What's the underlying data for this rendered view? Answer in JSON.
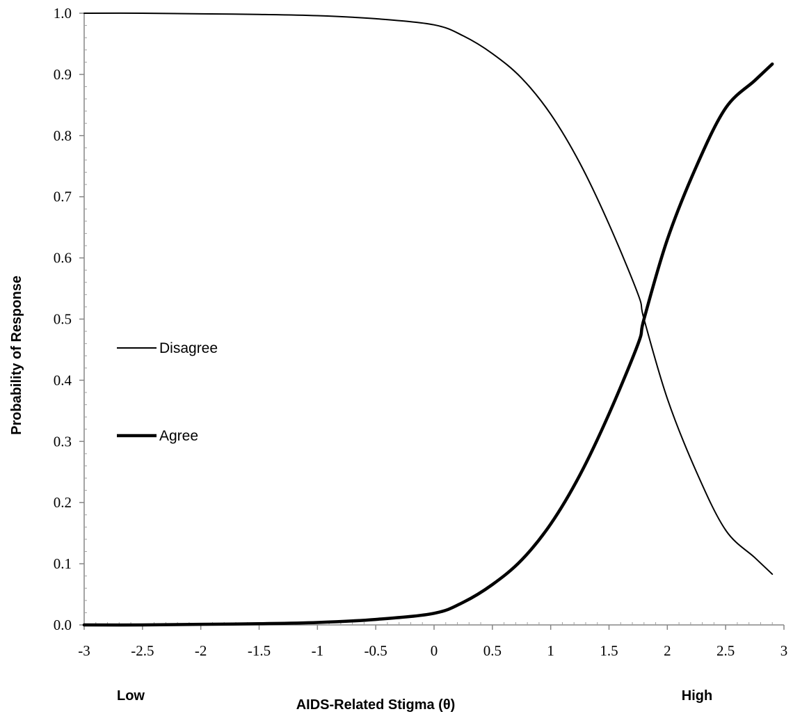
{
  "chart_data": {
    "type": "line",
    "xlabel": "AIDS-Related Stigma (θ)",
    "ylabel": "Probability of Response",
    "x_end_labels": {
      "low": "Low",
      "high": "High"
    },
    "xlim": [
      -3,
      3
    ],
    "ylim": [
      0,
      1
    ],
    "x_ticks": [
      -3,
      -2.5,
      -2,
      -1.5,
      -1,
      -0.5,
      0,
      0.5,
      1,
      1.5,
      2,
      2.5,
      3
    ],
    "x_tick_labels": [
      "-3",
      "-2.5",
      "-2",
      "-1.5",
      "-1",
      "-0.5",
      "0",
      "0.5",
      "1",
      "1.5",
      "2",
      "2.5",
      "3"
    ],
    "y_ticks": [
      0,
      0.1,
      0.2,
      0.3,
      0.4,
      0.5,
      0.6,
      0.7,
      0.8,
      0.9,
      1.0
    ],
    "y_tick_labels": [
      "0.0",
      "0.1",
      "0.2",
      "0.3",
      "0.4",
      "0.5",
      "0.6",
      "0.7",
      "0.8",
      "0.9",
      "1.0"
    ],
    "grid": false,
    "legend_position": "left-middle",
    "x": [
      -3,
      -2.5,
      -2,
      -1.5,
      -1,
      -0.5,
      0,
      0.25,
      0.5,
      0.75,
      1,
      1.25,
      1.5,
      1.75,
      1.8,
      2,
      2.25,
      2.5,
      2.75,
      2.9
    ],
    "series": [
      {
        "name": "Disagree",
        "line_style": "thin",
        "color": "#000000",
        "values": [
          1.0,
          1.0,
          0.999,
          0.998,
          0.996,
          0.991,
          0.981,
          0.963,
          0.934,
          0.894,
          0.835,
          0.755,
          0.655,
          0.54,
          0.5,
          0.37,
          0.25,
          0.155,
          0.11,
          0.083
        ]
      },
      {
        "name": "Agree",
        "line_style": "thick",
        "color": "#000000",
        "values": [
          0.0,
          0.0,
          0.001,
          0.002,
          0.004,
          0.009,
          0.019,
          0.037,
          0.066,
          0.106,
          0.165,
          0.245,
          0.345,
          0.46,
          0.5,
          0.63,
          0.75,
          0.845,
          0.89,
          0.917
        ]
      }
    ]
  }
}
